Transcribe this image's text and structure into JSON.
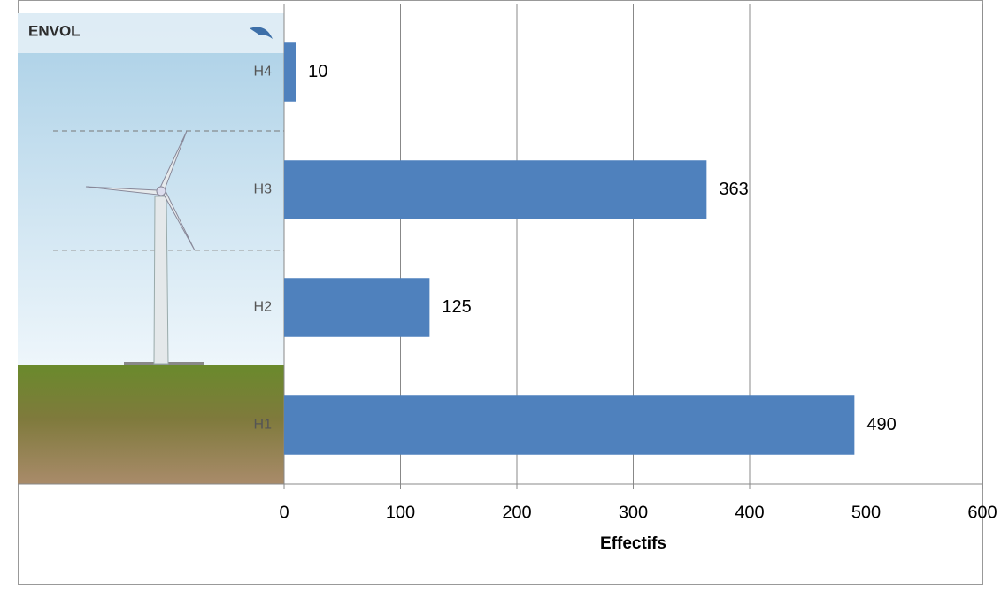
{
  "chart_data": {
    "type": "barh",
    "categories": [
      "H1",
      "H2",
      "H3",
      "H4"
    ],
    "values": [
      490,
      125,
      363,
      10
    ],
    "color": "#4f81bd",
    "xlim": [
      0,
      600
    ],
    "xticks": [
      0,
      100,
      200,
      300,
      400,
      500,
      600
    ],
    "xlabel": "Effectifs",
    "grid": true,
    "annotations": [
      "ENVOL"
    ]
  }
}
